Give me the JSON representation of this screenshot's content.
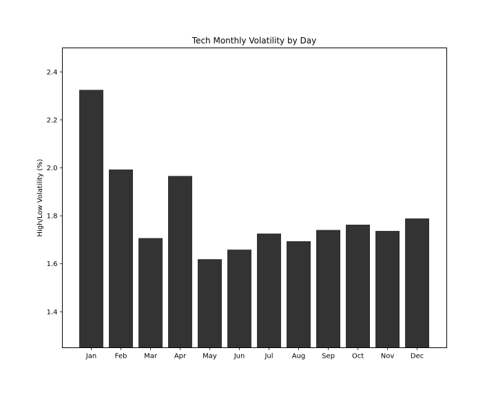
{
  "chart_data": {
    "type": "bar",
    "title": "Tech Monthly Volatility by Day",
    "xlabel": "",
    "ylabel": "High/Low Volatility (%)",
    "categories": [
      "Jan",
      "Feb",
      "Mar",
      "Apr",
      "May",
      "Jun",
      "Jul",
      "Aug",
      "Sep",
      "Oct",
      "Nov",
      "Dec"
    ],
    "values": [
      2.325,
      1.993,
      1.707,
      1.966,
      1.619,
      1.659,
      1.726,
      1.694,
      1.741,
      1.763,
      1.737,
      1.789
    ],
    "ylim": [
      1.25,
      2.5
    ],
    "yticks": [
      "1.4",
      "1.6",
      "1.8",
      "2.0",
      "2.2",
      "2.4"
    ],
    "grid": false,
    "bar_color": "#333333"
  }
}
